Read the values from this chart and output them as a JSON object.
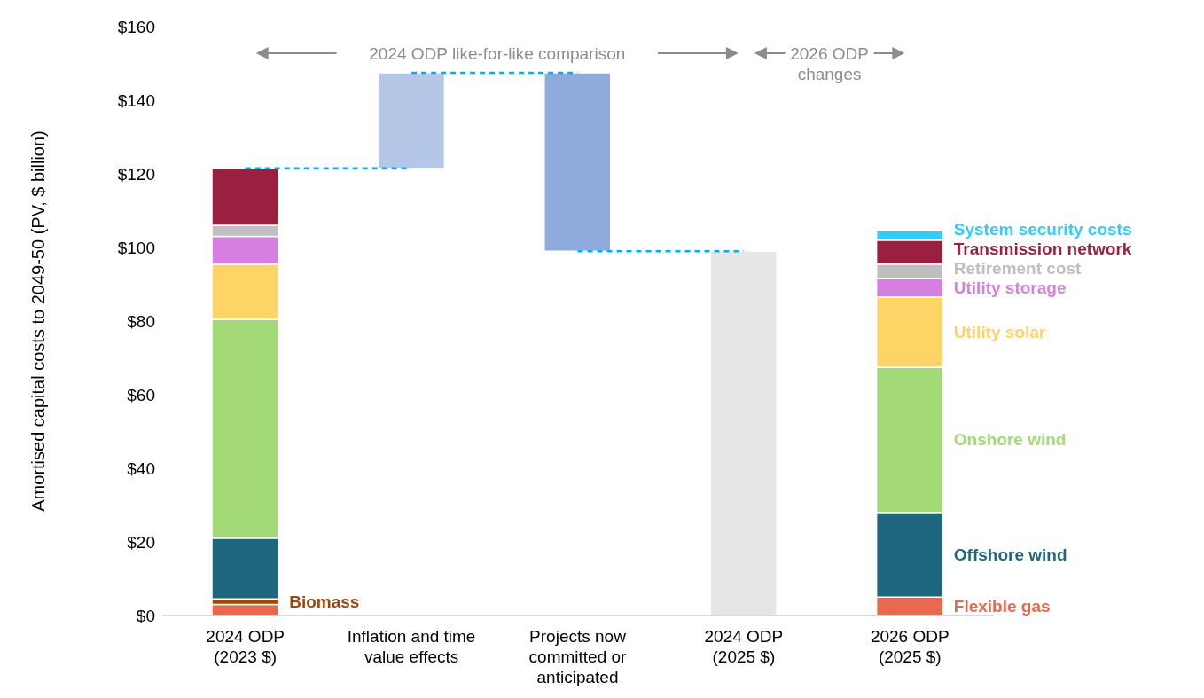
{
  "chart_data": {
    "type": "bar",
    "stacked": true,
    "ylabel": "Amortised capital costs to 2049-50 (PV, $ billion)",
    "categories": [
      "2024 ODP (2023 $)",
      "Inflation and time value effects",
      "Projects now committed or anticipated",
      "2024 ODP (2025 $)",
      "2026 ODP (2025 $)"
    ],
    "series": [
      {
        "name": "Flexible gas",
        "color": "#e8694f",
        "values": [
          3,
          null,
          null,
          null,
          5
        ]
      },
      {
        "name": "Biomass",
        "color": "#9e480e",
        "values": [
          1.5,
          null,
          null,
          null,
          null
        ]
      },
      {
        "name": "Offshore wind",
        "color": "#1f677e",
        "values": [
          16.5,
          null,
          null,
          null,
          23
        ]
      },
      {
        "name": "Onshore wind",
        "color": "#a3d977",
        "values": [
          59.5,
          null,
          null,
          null,
          39.5
        ]
      },
      {
        "name": "Utility solar",
        "color": "#ffd466",
        "values": [
          15,
          null,
          null,
          null,
          19
        ]
      },
      {
        "name": "Utility storage",
        "color": "#d67fe0",
        "values": [
          7.5,
          null,
          null,
          null,
          5
        ]
      },
      {
        "name": "Retirement cost",
        "color": "#bfbfbf",
        "values": [
          3,
          null,
          null,
          null,
          4
        ]
      },
      {
        "name": "Transmission network",
        "color": "#9b2040",
        "values": [
          15.5,
          null,
          null,
          null,
          6.5
        ]
      },
      {
        "name": "System security costs",
        "color": "#33ccff",
        "values": [
          null,
          null,
          null,
          null,
          2.5
        ]
      },
      {
        "color": "#b4c7e7",
        "values": [
          null,
          26,
          null,
          null,
          null
        ],
        "base": [
          null,
          121.5,
          null,
          null,
          null
        ]
      },
      {
        "color": "#8faadc",
        "values": [
          null,
          null,
          48.5,
          null,
          null
        ],
        "base": [
          null,
          null,
          99,
          null,
          null
        ]
      },
      {
        "color": "#e6e6e6",
        "values": [
          null,
          null,
          null,
          99,
          null
        ]
      }
    ],
    "ylim": [
      0,
      160
    ],
    "yticks": [
      {
        "value": 0,
        "label": "$0"
      },
      {
        "value": 20,
        "label": "$20"
      },
      {
        "value": 40,
        "label": "$40"
      },
      {
        "value": 60,
        "label": "$60"
      },
      {
        "value": 80,
        "label": "$80"
      },
      {
        "value": 100,
        "label": "$100"
      },
      {
        "value": 120,
        "label": "$120"
      },
      {
        "value": 140,
        "label": "$140"
      },
      {
        "value": 160,
        "label": "$160"
      }
    ],
    "annotations": [
      "2024 ODP like-for-like comparison",
      "2026 ODP changes"
    ],
    "grid": false
  }
}
